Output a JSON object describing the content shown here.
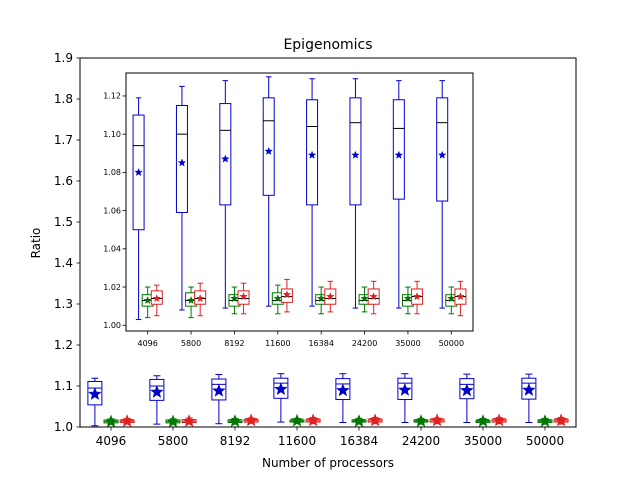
{
  "chart_data": [
    {
      "type": "box",
      "title": "Epigenomics",
      "xlabel": "Number of processors",
      "ylabel": "Ratio",
      "ylim": [
        1.0,
        1.9
      ],
      "yticks": [
        "1.0",
        "1.1",
        "1.2",
        "1.3",
        "1.4",
        "1.5",
        "1.6",
        "1.7",
        "1.8",
        "1.9"
      ],
      "categories": [
        "4096",
        "5800",
        "8192",
        "11600",
        "16384",
        "24200",
        "35000",
        "50000"
      ],
      "grid": false,
      "series": [
        {
          "color": "#0000cc",
          "boxes": [
            {
              "min": 1.003,
              "q1": 1.054,
              "median": 1.095,
              "q3": 1.111,
              "max": 1.119,
              "mean": 1.08
            },
            {
              "min": 1.007,
              "q1": 1.065,
              "median": 1.1,
              "q3": 1.116,
              "max": 1.125,
              "mean": 1.085
            },
            {
              "min": 1.008,
              "q1": 1.066,
              "median": 1.104,
              "q3": 1.117,
              "max": 1.128,
              "mean": 1.088
            },
            {
              "min": 1.012,
              "q1": 1.07,
              "median": 1.107,
              "q3": 1.119,
              "max": 1.13,
              "mean": 1.092
            },
            {
              "min": 1.011,
              "q1": 1.067,
              "median": 1.105,
              "q3": 1.118,
              "max": 1.13,
              "mean": 1.089
            },
            {
              "min": 1.011,
              "q1": 1.067,
              "median": 1.107,
              "q3": 1.119,
              "max": 1.13,
              "mean": 1.09
            },
            {
              "min": 1.011,
              "q1": 1.069,
              "median": 1.104,
              "q3": 1.118,
              "max": 1.129,
              "mean": 1.089
            },
            {
              "min": 1.011,
              "q1": 1.068,
              "median": 1.107,
              "q3": 1.119,
              "max": 1.129,
              "mean": 1.09
            }
          ]
        },
        {
          "color": "#007700",
          "boxes": [
            {
              "min": 1.007,
              "q1": 1.01,
              "median": 1.013,
              "q3": 1.017,
              "max": 1.02,
              "mean": 1.013
            },
            {
              "min": 1.007,
              "q1": 1.01,
              "median": 1.013,
              "q3": 1.017,
              "max": 1.02,
              "mean": 1.013
            },
            {
              "min": 1.007,
              "q1": 1.011,
              "median": 1.013,
              "q3": 1.017,
              "max": 1.021,
              "mean": 1.014
            },
            {
              "min": 1.01,
              "q1": 1.012,
              "median": 1.014,
              "q3": 1.017,
              "max": 1.021,
              "mean": 1.015
            },
            {
              "min": 1.01,
              "q1": 1.012,
              "median": 1.014,
              "q3": 1.017,
              "max": 1.021,
              "mean": 1.014
            },
            {
              "min": 1.01,
              "q1": 1.012,
              "median": 1.014,
              "q3": 1.017,
              "max": 1.021,
              "mean": 1.014
            },
            {
              "min": 1.01,
              "q1": 1.011,
              "median": 1.014,
              "q3": 1.016,
              "max": 1.021,
              "mean": 1.014
            },
            {
              "min": 1.007,
              "q1": 1.011,
              "median": 1.014,
              "q3": 1.017,
              "max": 1.021,
              "mean": 1.014
            }
          ]
        },
        {
          "color": "#dd2222",
          "boxes": [
            {
              "min": 1.008,
              "q1": 1.011,
              "median": 1.014,
              "q3": 1.017,
              "max": 1.021,
              "mean": 1.014
            },
            {
              "min": 1.008,
              "q1": 1.011,
              "median": 1.014,
              "q3": 1.018,
              "max": 1.022,
              "mean": 1.014
            },
            {
              "min": 1.009,
              "q1": 1.012,
              "median": 1.015,
              "q3": 1.018,
              "max": 1.022,
              "mean": 1.016
            },
            {
              "min": 1.008,
              "q1": 1.012,
              "median": 1.015,
              "q3": 1.019,
              "max": 1.023,
              "mean": 1.016
            },
            {
              "min": 1.008,
              "q1": 1.012,
              "median": 1.015,
              "q3": 1.019,
              "max": 1.023,
              "mean": 1.016
            },
            {
              "min": 1.008,
              "q1": 1.012,
              "median": 1.015,
              "q3": 1.019,
              "max": 1.022,
              "mean": 1.016
            },
            {
              "min": 1.008,
              "q1": 1.012,
              "median": 1.015,
              "q3": 1.019,
              "max": 1.023,
              "mean": 1.016
            },
            {
              "min": 1.007,
              "q1": 1.012,
              "median": 1.015,
              "q3": 1.019,
              "max": 1.023,
              "mean": 1.016
            }
          ]
        }
      ]
    },
    {
      "type": "box",
      "title": "",
      "xlabel": "",
      "ylabel": "",
      "ylim": [
        0.997,
        1.132
      ],
      "yticks": [
        "1.00",
        "1.02",
        "1.04",
        "1.06",
        "1.08",
        "1.10",
        "1.12"
      ],
      "categories": [
        "4096",
        "5800",
        "8192",
        "11600",
        "16384",
        "24200",
        "35000",
        "50000"
      ],
      "grid": false,
      "series": [
        {
          "color": "#0000cc",
          "boxes": [
            {
              "min": 1.003,
              "q1": 1.05,
              "median": 1.094,
              "q3": 1.11,
              "max": 1.119,
              "mean": 1.08
            },
            {
              "min": 1.008,
              "q1": 1.059,
              "median": 1.1,
              "q3": 1.115,
              "max": 1.125,
              "mean": 1.085
            },
            {
              "min": 1.009,
              "q1": 1.063,
              "median": 1.102,
              "q3": 1.116,
              "max": 1.128,
              "mean": 1.087
            },
            {
              "min": 1.01,
              "q1": 1.068,
              "median": 1.107,
              "q3": 1.119,
              "max": 1.13,
              "mean": 1.091
            },
            {
              "min": 1.01,
              "q1": 1.063,
              "median": 1.104,
              "q3": 1.118,
              "max": 1.129,
              "mean": 1.089
            },
            {
              "min": 1.009,
              "q1": 1.063,
              "median": 1.106,
              "q3": 1.119,
              "max": 1.129,
              "mean": 1.089
            },
            {
              "min": 1.009,
              "q1": 1.066,
              "median": 1.103,
              "q3": 1.118,
              "max": 1.128,
              "mean": 1.089
            },
            {
              "min": 1.009,
              "q1": 1.065,
              "median": 1.106,
              "q3": 1.119,
              "max": 1.128,
              "mean": 1.089
            }
          ]
        },
        {
          "color": "#007700",
          "boxes": [
            {
              "min": 1.004,
              "q1": 1.01,
              "median": 1.013,
              "q3": 1.016,
              "max": 1.02,
              "mean": 1.013
            },
            {
              "min": 1.004,
              "q1": 1.01,
              "median": 1.013,
              "q3": 1.017,
              "max": 1.02,
              "mean": 1.013
            },
            {
              "min": 1.006,
              "q1": 1.01,
              "median": 1.013,
              "q3": 1.016,
              "max": 1.02,
              "mean": 1.014
            },
            {
              "min": 1.006,
              "q1": 1.011,
              "median": 1.013,
              "q3": 1.017,
              "max": 1.021,
              "mean": 1.014
            },
            {
              "min": 1.006,
              "q1": 1.011,
              "median": 1.013,
              "q3": 1.016,
              "max": 1.02,
              "mean": 1.014
            },
            {
              "min": 1.007,
              "q1": 1.011,
              "median": 1.013,
              "q3": 1.016,
              "max": 1.02,
              "mean": 1.014
            },
            {
              "min": 1.006,
              "q1": 1.01,
              "median": 1.013,
              "q3": 1.016,
              "max": 1.02,
              "mean": 1.014
            },
            {
              "min": 1.006,
              "q1": 1.01,
              "median": 1.013,
              "q3": 1.016,
              "max": 1.02,
              "mean": 1.014
            }
          ]
        },
        {
          "color": "#dd2222",
          "boxes": [
            {
              "min": 1.005,
              "q1": 1.011,
              "median": 1.014,
              "q3": 1.018,
              "max": 1.021,
              "mean": 1.014
            },
            {
              "min": 1.005,
              "q1": 1.011,
              "median": 1.014,
              "q3": 1.018,
              "max": 1.022,
              "mean": 1.014
            },
            {
              "min": 1.006,
              "q1": 1.011,
              "median": 1.014,
              "q3": 1.018,
              "max": 1.022,
              "mean": 1.015
            },
            {
              "min": 1.007,
              "q1": 1.012,
              "median": 1.015,
              "q3": 1.019,
              "max": 1.024,
              "mean": 1.016
            },
            {
              "min": 1.007,
              "q1": 1.011,
              "median": 1.014,
              "q3": 1.019,
              "max": 1.023,
              "mean": 1.015
            },
            {
              "min": 1.006,
              "q1": 1.011,
              "median": 1.014,
              "q3": 1.019,
              "max": 1.023,
              "mean": 1.015
            },
            {
              "min": 1.006,
              "q1": 1.011,
              "median": 1.015,
              "q3": 1.019,
              "max": 1.023,
              "mean": 1.015
            },
            {
              "min": 1.005,
              "q1": 1.011,
              "median": 1.015,
              "q3": 1.019,
              "max": 1.023,
              "mean": 1.015
            }
          ]
        }
      ]
    }
  ]
}
